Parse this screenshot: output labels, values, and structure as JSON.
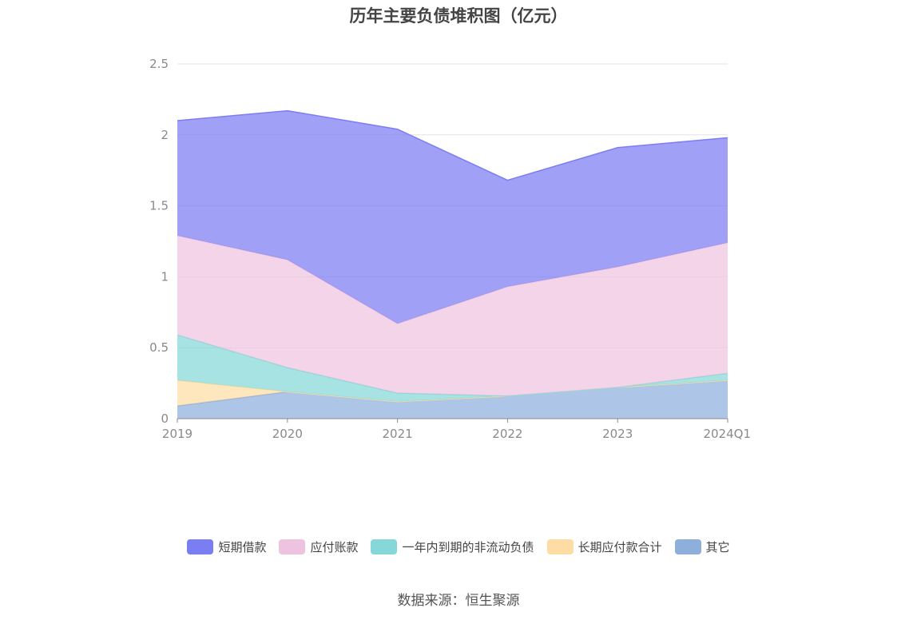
{
  "chart_data": {
    "type": "area",
    "stacked": true,
    "title": "历年主要负债堆积图（亿元）",
    "x": [
      "2019",
      "2020",
      "2021",
      "2022",
      "2023",
      "2024Q1"
    ],
    "yticks": [
      "0",
      "0.5",
      "1",
      "1.5",
      "2",
      "2.5"
    ],
    "ylim": [
      0,
      2.5
    ],
    "grid": true,
    "legend_position": "bottom",
    "series": [
      {
        "name": "其它",
        "color": "#8EAEDC",
        "values": [
          0.09,
          0.19,
          0.12,
          0.16,
          0.22,
          0.27
        ]
      },
      {
        "name": "长期应付款合计",
        "color": "#FDDDA3",
        "values": [
          0.18,
          0.0,
          0.0,
          0.0,
          0.0,
          0.0
        ]
      },
      {
        "name": "一年内到期的非流动负债",
        "color": "#86D8D8",
        "values": [
          0.32,
          0.17,
          0.06,
          0.0,
          0.0,
          0.05
        ]
      },
      {
        "name": "应付账款",
        "color": "#EEC3DF",
        "values": [
          0.7,
          0.76,
          0.49,
          0.77,
          0.85,
          0.92
        ]
      },
      {
        "name": "短期借款",
        "color": "#7B7DF3",
        "values": [
          0.81,
          1.05,
          1.37,
          0.75,
          0.84,
          0.74
        ]
      }
    ],
    "legend_order": [
      "短期借款",
      "应付账款",
      "一年内到期的非流动负债",
      "长期应付款合计",
      "其它"
    ]
  },
  "source": "数据来源：恒生聚源"
}
